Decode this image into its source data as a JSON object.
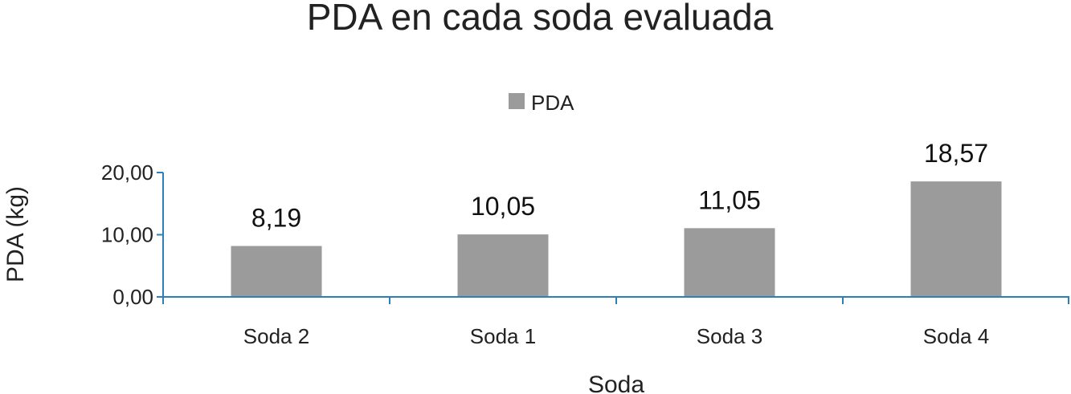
{
  "chart_data": {
    "type": "bar",
    "title": "PDA en cada soda evaluada",
    "xlabel": "Soda",
    "ylabel": "PDA (kg)",
    "categories": [
      "Soda 2",
      "Soda 1",
      "Soda 3",
      "Soda 4"
    ],
    "series": [
      {
        "name": "PDA",
        "values": [
          8.19,
          10.05,
          11.05,
          18.57
        ],
        "color": "#9b9b9b"
      }
    ],
    "data_labels": [
      "8,19",
      "10,05",
      "11,05",
      "18,57"
    ],
    "y_ticks": [
      {
        "value": 0,
        "label": "0,00"
      },
      {
        "value": 10,
        "label": "10,00"
      },
      {
        "value": 20,
        "label": "20,00"
      }
    ],
    "ylim": [
      0,
      20
    ],
    "grid": false,
    "legend_position": "top-center",
    "axis_color": "#2e7fb8"
  }
}
